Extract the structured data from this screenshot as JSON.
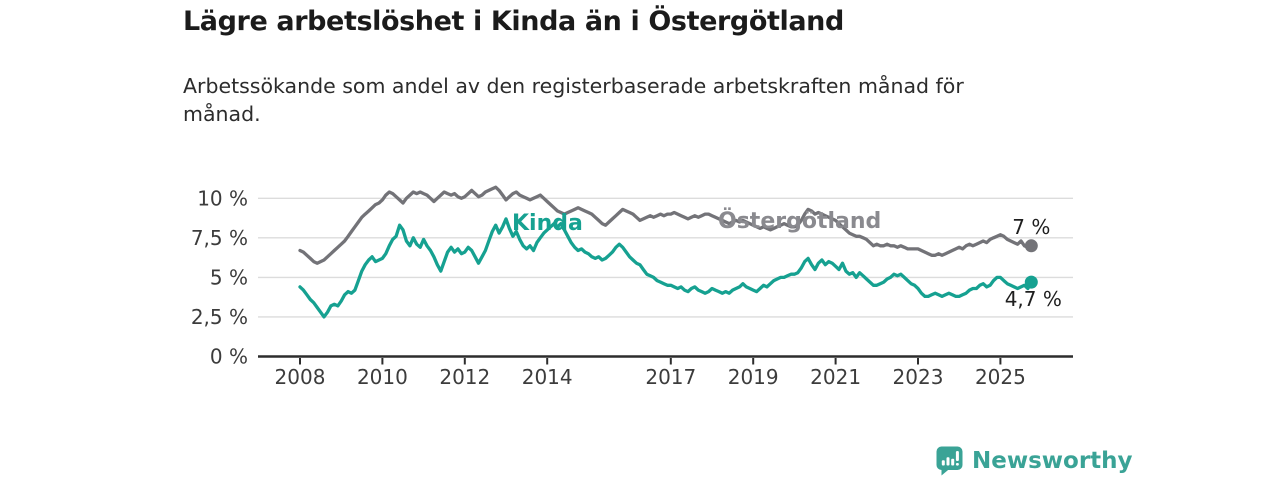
{
  "header": {
    "title": "Lägre arbetslöshet i Kinda än i Östergötland",
    "subtitle": "Arbetssökande som andel av den registerbaserade arbetskraften månad för månad."
  },
  "footer": {
    "brand": "Newsworthy",
    "logo_icon": "bar-chart-speech-bubble"
  },
  "colors": {
    "kinda": "#16a191",
    "ostergotland": "#737378",
    "kinda_label": "#16a191",
    "ostergotland_label": "#8a8a8f",
    "grid": "#dcdcdc",
    "axis": "#2d2d2d",
    "tick_text": "#3c3c3c",
    "brand": "#3aa396"
  },
  "chart_data": {
    "type": "line",
    "title": "Lägre arbetslöshet i Kinda än i Östergötland",
    "subtitle": "Arbetssökande som andel av den registerbaserade arbetskraften månad för månad.",
    "unit": "%",
    "frequency": "monthly",
    "x_start": "2008-01",
    "x_end": "2025-10",
    "x_tick_years": [
      2008,
      2010,
      2012,
      2014,
      2017,
      2019,
      2021,
      2023,
      2025
    ],
    "y_ticks": [
      {
        "value": 0,
        "label": "0 %"
      },
      {
        "value": 2.5,
        "label": "2,5 %"
      },
      {
        "value": 5,
        "label": "5 %"
      },
      {
        "value": 7.5,
        "label": "7,5 %"
      },
      {
        "value": 10,
        "label": "10 %"
      }
    ],
    "ylim": [
      0,
      10.8
    ],
    "grid": true,
    "legend_position": "inline-labels",
    "series": [
      {
        "name": "Östergötland",
        "color": "#737378",
        "end_value": 7.0,
        "end_label": "7 %",
        "values": [
          6.7,
          6.6,
          6.4,
          6.2,
          6.0,
          5.9,
          6.0,
          6.1,
          6.3,
          6.5,
          6.7,
          6.9,
          7.1,
          7.3,
          7.6,
          7.9,
          8.2,
          8.5,
          8.8,
          9.0,
          9.2,
          9.4,
          9.6,
          9.7,
          9.9,
          10.2,
          10.4,
          10.3,
          10.1,
          9.9,
          9.7,
          10.0,
          10.2,
          10.4,
          10.3,
          10.4,
          10.3,
          10.2,
          10.0,
          9.8,
          10.0,
          10.2,
          10.4,
          10.3,
          10.2,
          10.3,
          10.1,
          10.0,
          10.1,
          10.3,
          10.5,
          10.3,
          10.1,
          10.2,
          10.4,
          10.5,
          10.6,
          10.7,
          10.5,
          10.2,
          9.9,
          10.1,
          10.3,
          10.4,
          10.2,
          10.1,
          10.0,
          9.9,
          10.0,
          10.1,
          10.2,
          10.0,
          9.8,
          9.6,
          9.4,
          9.2,
          9.1,
          9.0,
          9.1,
          9.2,
          9.3,
          9.4,
          9.3,
          9.2,
          9.1,
          9.0,
          8.8,
          8.6,
          8.4,
          8.3,
          8.5,
          8.7,
          8.9,
          9.1,
          9.3,
          9.2,
          9.1,
          9.0,
          8.8,
          8.6,
          8.7,
          8.8,
          8.9,
          8.8,
          8.9,
          9.0,
          8.9,
          9.0,
          9.0,
          9.1,
          9.0,
          8.9,
          8.8,
          8.7,
          8.8,
          8.9,
          8.8,
          8.9,
          9.0,
          9.0,
          8.9,
          8.8,
          8.7,
          8.6,
          8.5,
          8.4,
          8.5,
          8.6,
          8.5,
          8.6,
          8.5,
          8.4,
          8.3,
          8.2,
          8.1,
          8.2,
          8.1,
          8.0,
          8.1,
          8.2,
          8.3,
          8.4,
          8.3,
          8.2,
          8.2,
          8.3,
          8.6,
          9.0,
          9.3,
          9.2,
          9.0,
          9.1,
          9.0,
          8.9,
          8.8,
          8.7,
          8.6,
          8.4,
          8.2,
          8.0,
          7.8,
          7.7,
          7.6,
          7.6,
          7.5,
          7.4,
          7.2,
          7.0,
          7.1,
          7.0,
          7.0,
          7.1,
          7.0,
          7.0,
          6.9,
          7.0,
          6.9,
          6.8,
          6.8,
          6.8,
          6.8,
          6.7,
          6.6,
          6.5,
          6.4,
          6.4,
          6.5,
          6.4,
          6.5,
          6.6,
          6.7,
          6.8,
          6.9,
          6.8,
          7.0,
          7.1,
          7.0,
          7.1,
          7.2,
          7.3,
          7.2,
          7.4,
          7.5,
          7.6,
          7.7,
          7.6,
          7.4,
          7.3,
          7.2,
          7.1,
          7.3,
          7.0,
          6.9,
          7.0
        ]
      },
      {
        "name": "Kinda",
        "color": "#16a191",
        "end_value": 4.7,
        "end_label": "4,7 %",
        "values": [
          4.4,
          4.2,
          3.9,
          3.6,
          3.4,
          3.1,
          2.8,
          2.5,
          2.8,
          3.2,
          3.3,
          3.2,
          3.5,
          3.9,
          4.1,
          4.0,
          4.2,
          4.8,
          5.4,
          5.8,
          6.1,
          6.3,
          6.0,
          6.1,
          6.2,
          6.5,
          7.0,
          7.4,
          7.6,
          8.3,
          8.0,
          7.3,
          7.0,
          7.5,
          7.1,
          6.9,
          7.4,
          7.0,
          6.7,
          6.3,
          5.8,
          5.4,
          6.0,
          6.6,
          6.9,
          6.6,
          6.8,
          6.5,
          6.6,
          6.9,
          6.7,
          6.3,
          5.9,
          6.3,
          6.7,
          7.3,
          7.9,
          8.3,
          7.8,
          8.2,
          8.7,
          8.1,
          7.6,
          7.9,
          7.4,
          7.0,
          6.8,
          7.0,
          6.7,
          7.2,
          7.5,
          7.8,
          8.0,
          8.2,
          8.4,
          8.2,
          8.4,
          8.0,
          7.6,
          7.2,
          6.9,
          6.7,
          6.8,
          6.6,
          6.5,
          6.3,
          6.2,
          6.3,
          6.1,
          6.2,
          6.4,
          6.6,
          6.9,
          7.1,
          6.9,
          6.6,
          6.3,
          6.1,
          5.9,
          5.8,
          5.5,
          5.2,
          5.1,
          5.0,
          4.8,
          4.7,
          4.6,
          4.5,
          4.5,
          4.4,
          4.3,
          4.4,
          4.2,
          4.1,
          4.3,
          4.4,
          4.2,
          4.1,
          4.0,
          4.1,
          4.3,
          4.2,
          4.1,
          4.0,
          4.1,
          4.0,
          4.2,
          4.3,
          4.4,
          4.6,
          4.4,
          4.3,
          4.2,
          4.1,
          4.3,
          4.5,
          4.4,
          4.6,
          4.8,
          4.9,
          5.0,
          5.0,
          5.1,
          5.2,
          5.2,
          5.3,
          5.6,
          6.0,
          6.2,
          5.8,
          5.5,
          5.9,
          6.1,
          5.8,
          6.0,
          5.9,
          5.7,
          5.5,
          5.9,
          5.4,
          5.2,
          5.3,
          5.0,
          5.3,
          5.1,
          4.9,
          4.7,
          4.5,
          4.5,
          4.6,
          4.7,
          4.9,
          5.0,
          5.2,
          5.1,
          5.2,
          5.0,
          4.8,
          4.6,
          4.5,
          4.3,
          4.0,
          3.8,
          3.8,
          3.9,
          4.0,
          3.9,
          3.8,
          3.9,
          4.0,
          3.9,
          3.8,
          3.8,
          3.9,
          4.0,
          4.2,
          4.3,
          4.3,
          4.5,
          4.6,
          4.4,
          4.5,
          4.8,
          5.0,
          5.0,
          4.8,
          4.6,
          4.5,
          4.4,
          4.3,
          4.4,
          4.5,
          4.3,
          4.7
        ]
      }
    ]
  }
}
